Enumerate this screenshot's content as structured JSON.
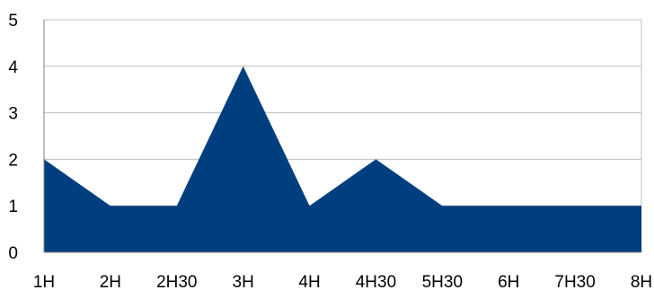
{
  "chart_data": {
    "type": "area",
    "title": "",
    "xlabel": "",
    "ylabel": "",
    "categories": [
      "1H",
      "2H",
      "2H30",
      "3H",
      "4H",
      "4H30",
      "5H30",
      "6H",
      "7H30",
      "8H"
    ],
    "series": [
      {
        "values": [
          2,
          1,
          1,
          4,
          1,
          2,
          1,
          1,
          1,
          1
        ],
        "color": "#003F7F"
      }
    ],
    "ylim": [
      0,
      5
    ],
    "yticks": [
      "0",
      "1",
      "2",
      "3",
      "4",
      "5"
    ],
    "grid": true,
    "legend": "none"
  },
  "colors": {
    "area_fill": "#003F7F",
    "gridline": "#BFBFBF",
    "axis": "#808080",
    "text": "#000000"
  }
}
